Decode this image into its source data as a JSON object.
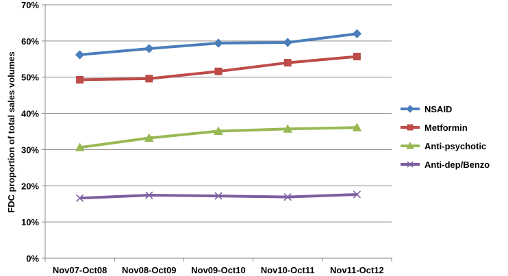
{
  "chart_data": {
    "type": "line",
    "title": "",
    "xlabel": "",
    "ylabel": "FDC proportion of total sales volumes",
    "ylim": [
      0,
      70
    ],
    "ytick_step": 10,
    "ytick_suffix": "%",
    "grid": true,
    "legend_position": "right",
    "categories": [
      "Nov07-Oct08",
      "Nov08-Oct09",
      "Nov09-Oct10",
      "Nov10-Oct11",
      "Nov11-Oct12"
    ],
    "series": [
      {
        "name": "NSAID",
        "color": "#4a7ebb",
        "marker": "diamond",
        "values": [
          56.2,
          57.9,
          59.4,
          59.6,
          62.0
        ]
      },
      {
        "name": "Metformin",
        "color": "#be4b48",
        "marker": "square",
        "values": [
          49.3,
          49.6,
          51.6,
          54.0,
          55.7
        ]
      },
      {
        "name": "Anti-psychotic",
        "color": "#98b954",
        "marker": "triangle",
        "values": [
          30.6,
          33.2,
          35.1,
          35.7,
          36.1
        ]
      },
      {
        "name": "Anti-dep/Benzo",
        "color": "#7d5fa0",
        "marker": "x",
        "values": [
          16.6,
          17.4,
          17.2,
          16.9,
          17.6
        ]
      }
    ]
  }
}
